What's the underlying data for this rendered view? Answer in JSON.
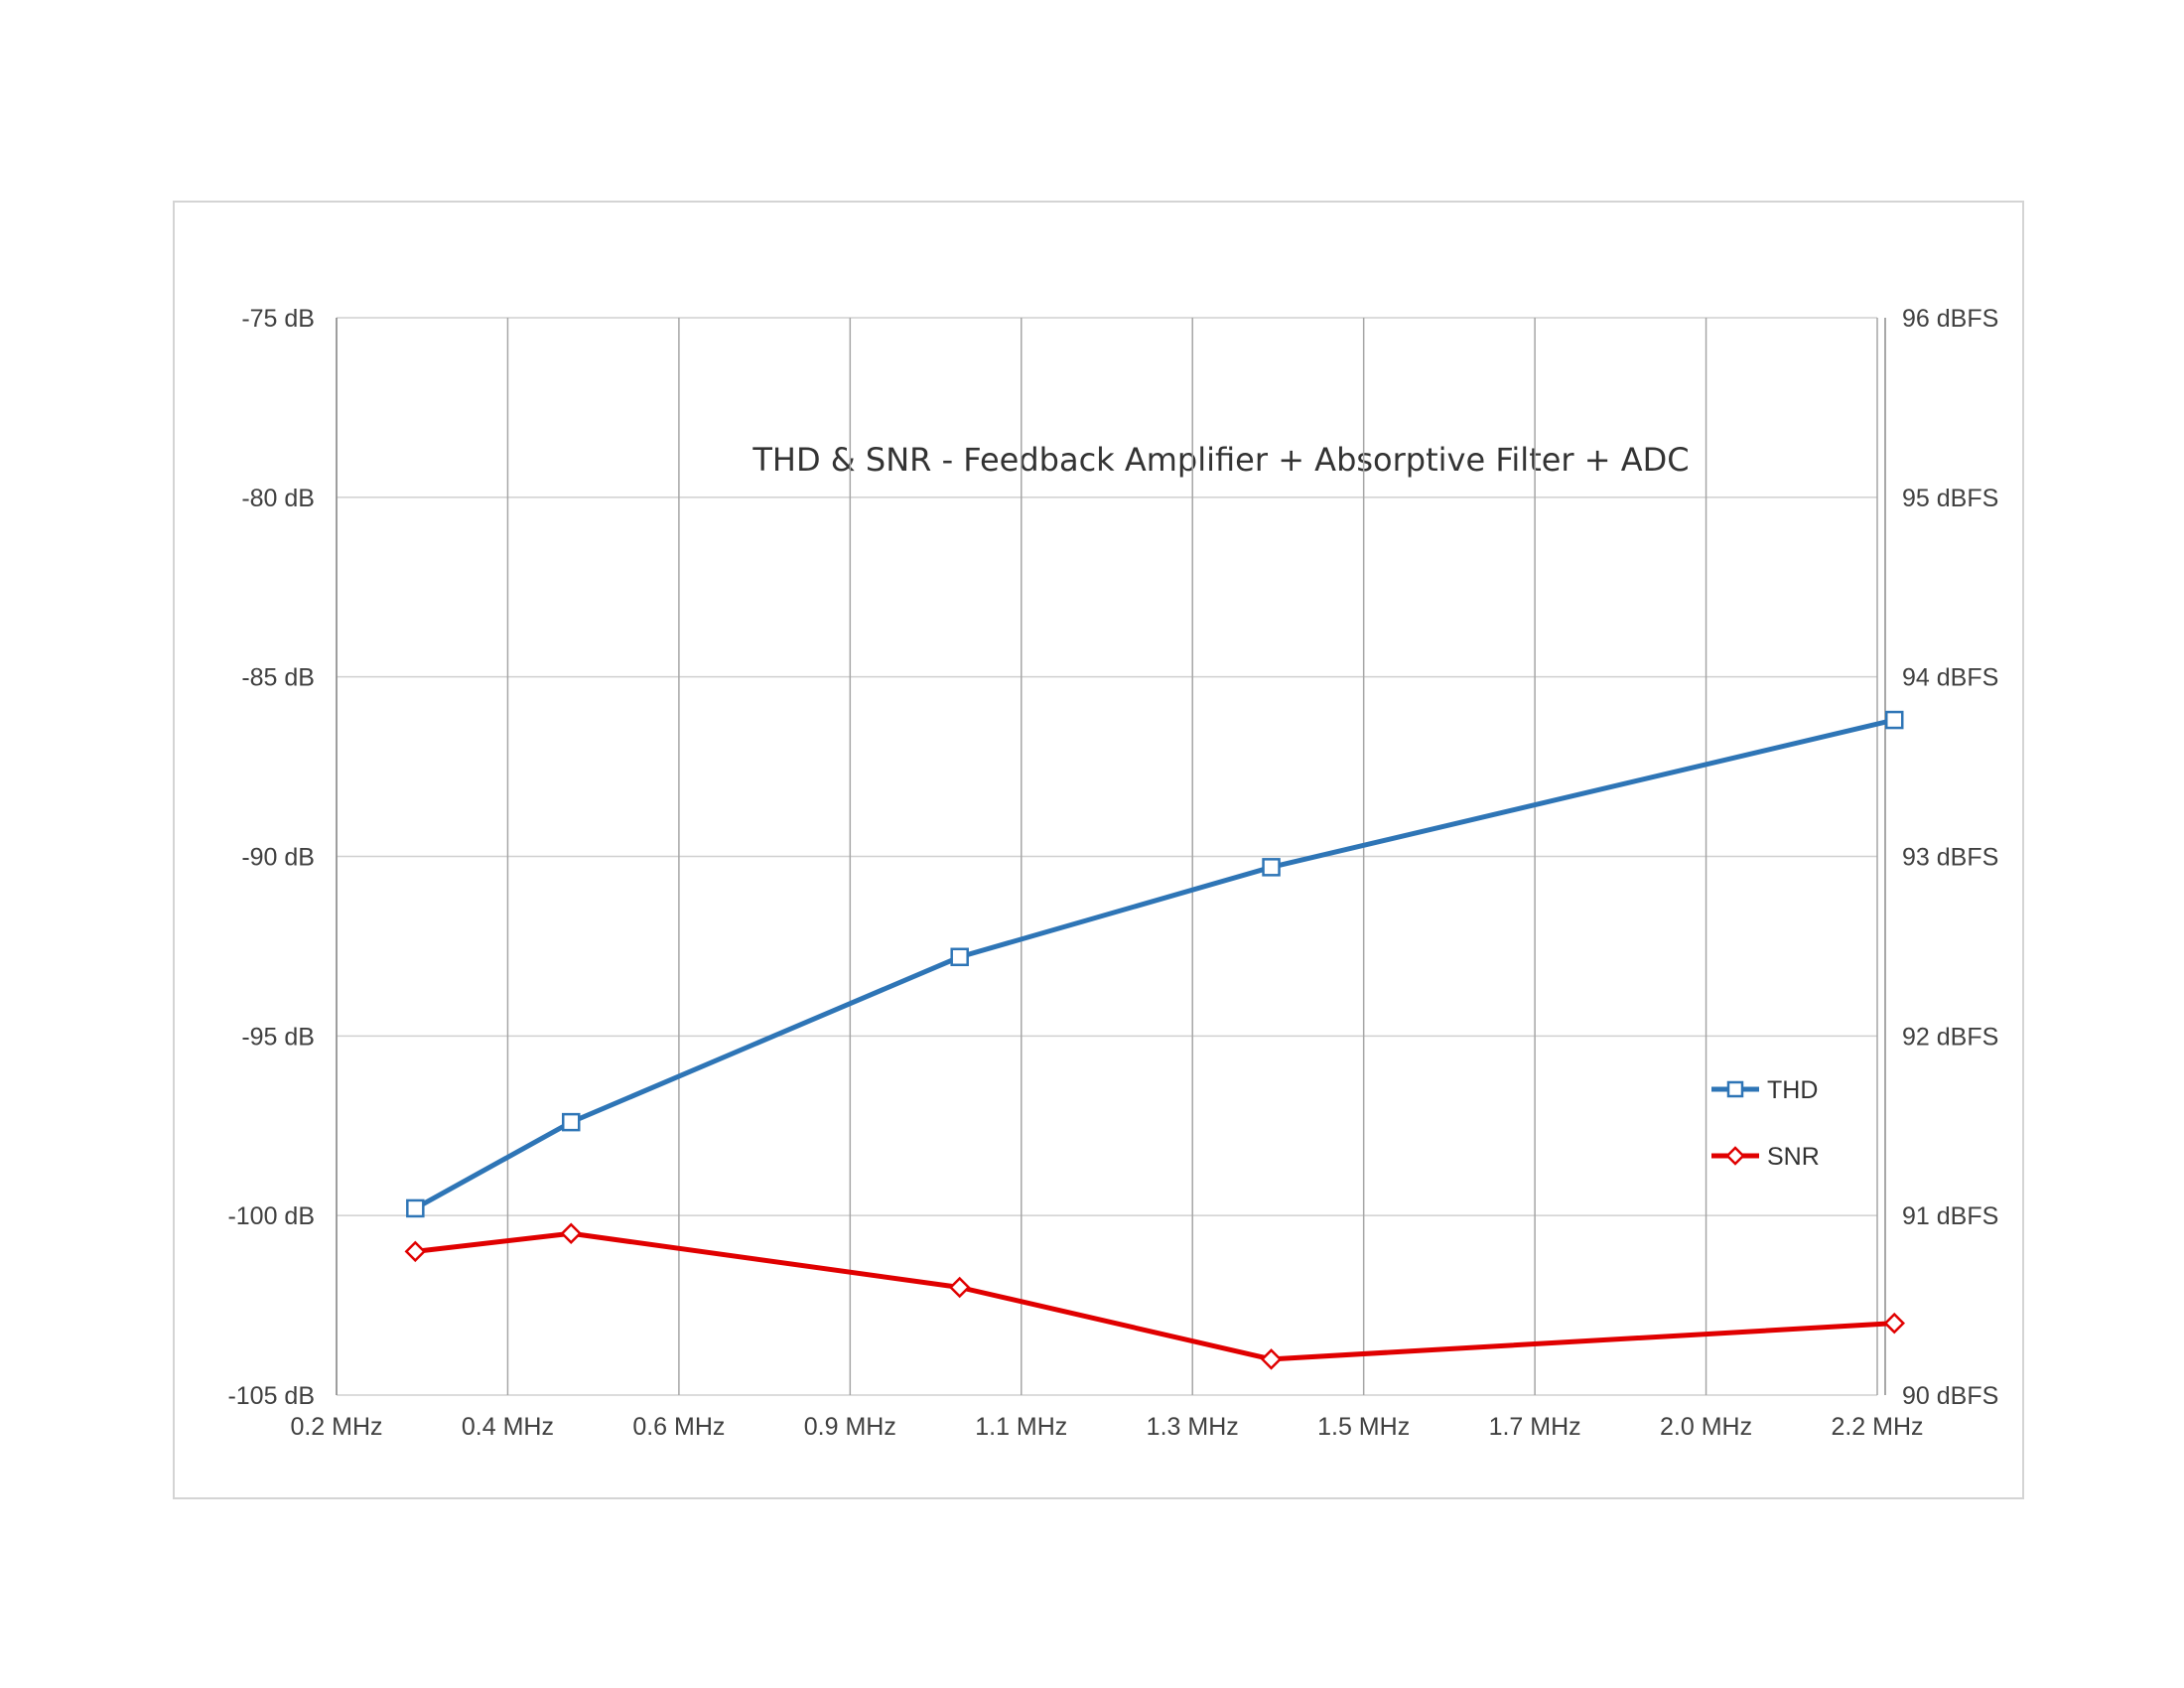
{
  "chart_data": {
    "type": "line",
    "title": "THD & SNR - Feedback Amplifier + Absorptive Filter + ADC",
    "xlabel": "",
    "ylabel": "",
    "x_tick_labels": [
      "0.2 MHz",
      "0.4 MHz",
      "0.6 MHz",
      "0.9 MHz",
      "1.1 MHz",
      "1.3 MHz",
      "1.5 MHz",
      "1.7 MHz",
      "2.0 MHz",
      "2.2 MHz"
    ],
    "y_left": {
      "range": [
        -105,
        -75
      ],
      "tick_labels": [
        "-75 dB",
        "-80 dB",
        "-85 dB",
        "-90 dB",
        "-95 dB",
        "-100 dB",
        "-105 dB"
      ],
      "tick_values": [
        -75,
        -80,
        -85,
        -90,
        -95,
        -100,
        -105
      ]
    },
    "y_right": {
      "range": [
        90,
        96
      ],
      "tick_labels": [
        "96 dBFS",
        "95 dBFS",
        "94 dBFS",
        "93 dBFS",
        "92 dBFS",
        "91 dBFS",
        "90 dBFS"
      ],
      "tick_values": [
        96,
        95,
        94,
        93,
        92,
        91,
        90
      ]
    },
    "grid": true,
    "legend_position": "right",
    "series": [
      {
        "name": "THD",
        "axis": "left",
        "color": "#2e75b6",
        "marker": "square",
        "x_pos": [
          0.46,
          1.37,
          3.64,
          5.46,
          9.1
        ],
        "values": [
          -99.8,
          -97.4,
          -92.8,
          -90.3,
          -86.2
        ]
      },
      {
        "name": "SNR",
        "axis": "right",
        "color": "#e00000",
        "marker": "diamond",
        "x_pos": [
          0.46,
          1.37,
          3.64,
          5.46,
          9.1
        ],
        "values": [
          90.8,
          90.9,
          90.6,
          90.2,
          90.4
        ]
      }
    ]
  }
}
